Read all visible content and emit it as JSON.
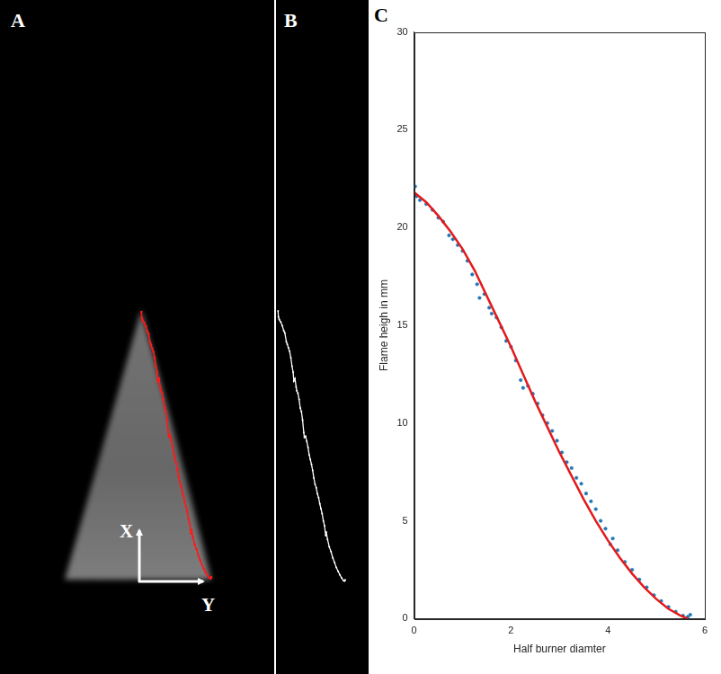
{
  "panels": [
    {
      "label": "A",
      "arrow_labels": [
        "X",
        "Y"
      ]
    },
    {
      "label": "B"
    },
    {
      "label": "C"
    }
  ],
  "chart_data": {
    "type": "scatter",
    "x_label": "Half burner diamter",
    "y_label": "Flame heigh in mm",
    "xlim": [
      0,
      6
    ],
    "xticks": [
      0,
      2,
      4,
      6
    ],
    "ylim": [
      0,
      30
    ],
    "yticks": [
      0,
      5,
      10,
      15,
      20,
      25,
      30
    ],
    "grid": false,
    "series": [
      {
        "type": "scatter",
        "color": "#1f77b4",
        "marker": "circle",
        "x": [
          0.02,
          0.05,
          0.12,
          0.25,
          0.38,
          0.5,
          0.6,
          0.72,
          0.8,
          0.9,
          1.0,
          1.1,
          1.2,
          1.3,
          1.35,
          1.45,
          1.55,
          1.6,
          1.7,
          1.8,
          1.9,
          2.0,
          2.1,
          2.2,
          2.25,
          2.35,
          2.45,
          2.55,
          2.65,
          2.75,
          2.85,
          2.95,
          3.05,
          3.15,
          3.25,
          3.35,
          3.45,
          3.55,
          3.65,
          3.75,
          3.85,
          3.95,
          4.05,
          4.1,
          4.2,
          4.35,
          4.5,
          4.65,
          4.8,
          4.95,
          5.1,
          5.25,
          5.4,
          5.55,
          5.65,
          5.7
        ],
        "values": [
          22.1,
          21.6,
          21.4,
          21.2,
          20.9,
          20.5,
          20.3,
          19.6,
          19.4,
          19.1,
          18.8,
          18.3,
          17.6,
          17.1,
          16.4,
          16.6,
          15.9,
          15.6,
          15.4,
          14.9,
          14.2,
          13.9,
          13.2,
          12.2,
          11.8,
          11.9,
          11.5,
          11.0,
          10.4,
          10.0,
          9.6,
          9.1,
          8.5,
          8.0,
          7.7,
          7.2,
          6.9,
          6.4,
          6.0,
          5.6,
          5.0,
          4.6,
          3.8,
          4.1,
          3.5,
          2.9,
          2.5,
          2.0,
          1.6,
          1.2,
          0.9,
          0.6,
          0.35,
          0.15,
          0.1,
          0.2
        ]
      },
      {
        "type": "line",
        "color": "#e41a1c",
        "line_style": "solid",
        "x": [
          0,
          0.25,
          0.5,
          0.75,
          1.0,
          1.25,
          1.5,
          1.75,
          2.0,
          2.25,
          2.5,
          2.75,
          3.0,
          3.25,
          3.5,
          3.75,
          4.0,
          4.25,
          4.5,
          4.75,
          5.0,
          5.25,
          5.5,
          5.65
        ],
        "values": [
          21.8,
          21.3,
          20.6,
          19.8,
          18.9,
          17.8,
          16.5,
          15.2,
          13.9,
          12.5,
          11.1,
          9.8,
          8.5,
          7.3,
          6.1,
          5.0,
          4.0,
          3.1,
          2.3,
          1.6,
          1.0,
          0.5,
          0.15,
          0
        ]
      }
    ]
  }
}
